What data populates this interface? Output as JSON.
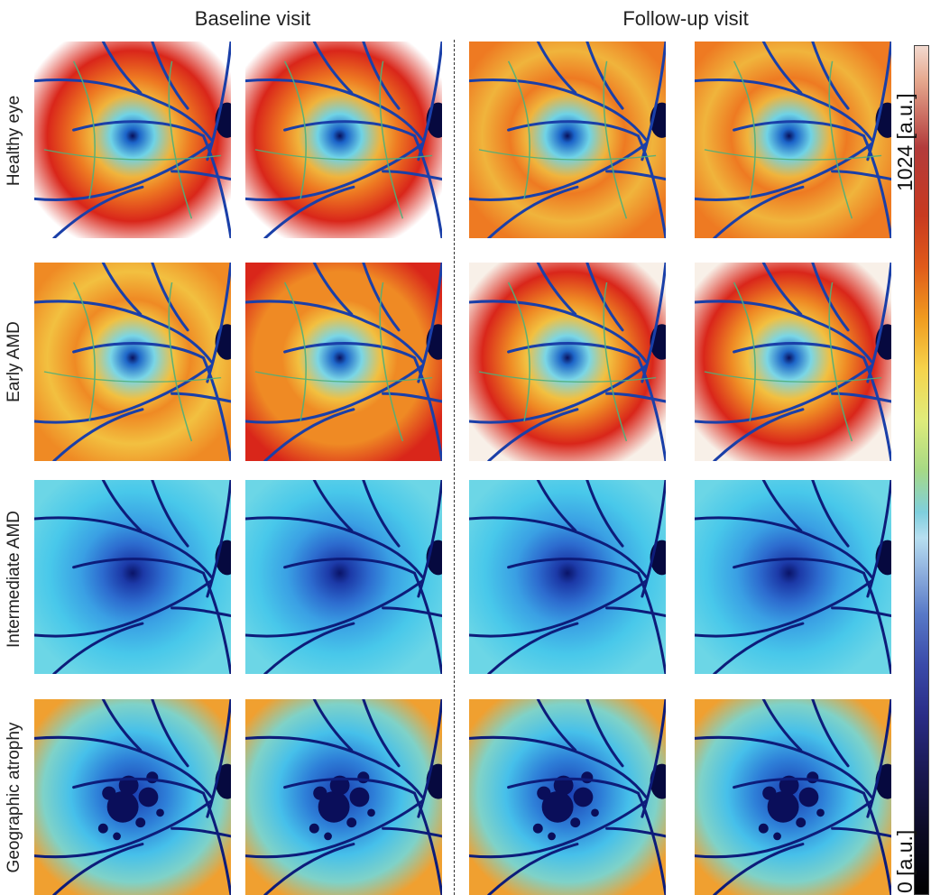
{
  "columns": {
    "baseline": "Baseline visit",
    "followup": "Follow-up visit"
  },
  "rows": [
    {
      "label": "Healthy eye",
      "theme": "red-healthy"
    },
    {
      "label": "Early AMD",
      "theme": "red-early"
    },
    {
      "label": "Intermediate AMD",
      "theme": "blue"
    },
    {
      "label": "Geographic atrophy",
      "theme": "atrophy"
    }
  ],
  "colorbar": {
    "max_label": "1024 [a.u.]",
    "min_label": "0 [a.u.]",
    "colors": [
      "#f2d9cf",
      "#b33b3b",
      "#e05a1a",
      "#f6d34b",
      "#a6d985",
      "#7fcfdd",
      "#5879c7",
      "#2a2c86",
      "#000000"
    ]
  }
}
